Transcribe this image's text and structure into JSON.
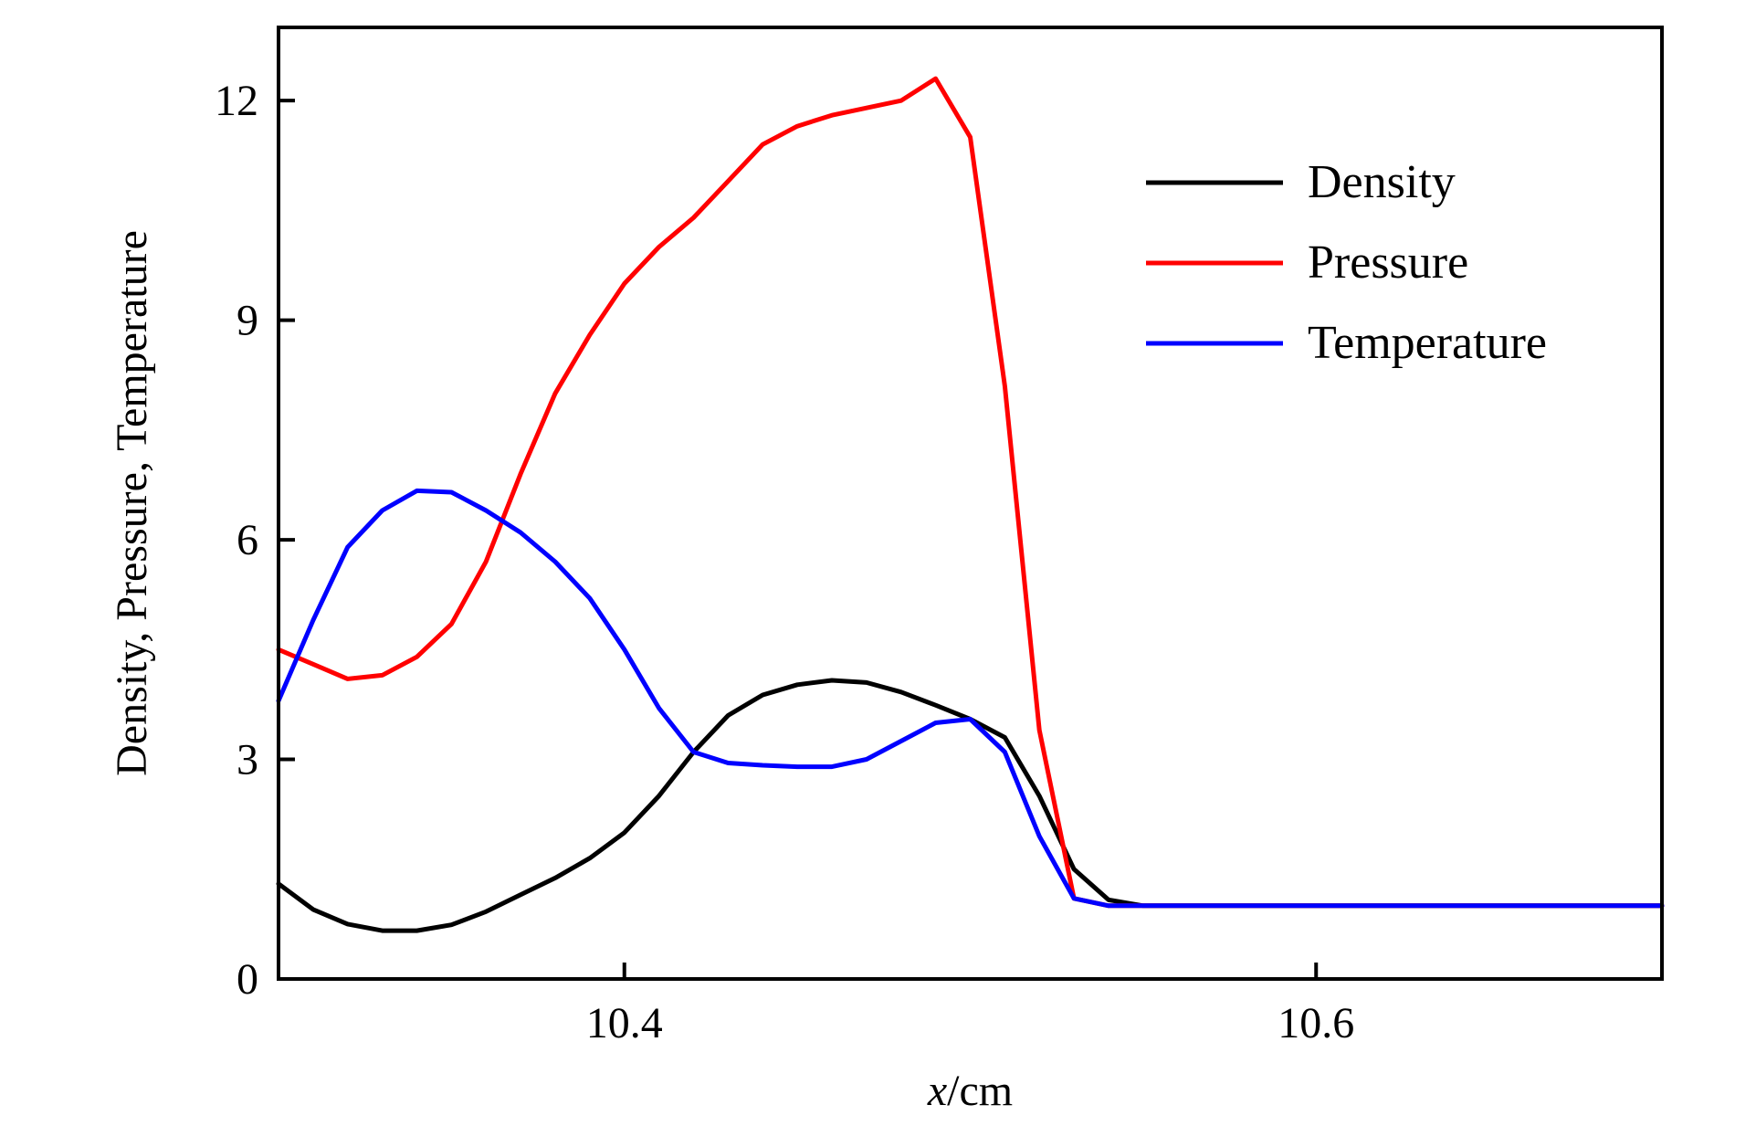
{
  "chart_data": {
    "type": "line",
    "title": "",
    "xlabel": {
      "italic": "x",
      "rest": "/cm"
    },
    "ylabel": "Density, Pressure, Temperature",
    "xlim": [
      10.3,
      10.7
    ],
    "ylim": [
      0,
      13
    ],
    "xticks": [
      10.4,
      10.6
    ],
    "xtick_labels": [
      "10.4",
      "10.6"
    ],
    "yticks": [
      0,
      3,
      6,
      9,
      12
    ],
    "ytick_labels": [
      "0",
      "3",
      "6",
      "9",
      "12"
    ],
    "grid": false,
    "legend_position": "top-right",
    "series": [
      {
        "name": "Density",
        "color": "#000000",
        "x": [
          10.3,
          10.31,
          10.32,
          10.33,
          10.34,
          10.35,
          10.36,
          10.37,
          10.38,
          10.39,
          10.4,
          10.41,
          10.42,
          10.43,
          10.44,
          10.45,
          10.46,
          10.47,
          10.48,
          10.49,
          10.5,
          10.51,
          10.52,
          10.53,
          10.54,
          10.55,
          10.56,
          10.57,
          10.58,
          10.59,
          10.6,
          10.62,
          10.64,
          10.66,
          10.68,
          10.7
        ],
        "values": [
          1.3,
          0.95,
          0.75,
          0.66,
          0.66,
          0.74,
          0.92,
          1.15,
          1.38,
          1.65,
          2.0,
          2.5,
          3.1,
          3.6,
          3.88,
          4.02,
          4.08,
          4.05,
          3.92,
          3.74,
          3.55,
          3.3,
          2.5,
          1.5,
          1.08,
          1.0,
          1.0,
          1.0,
          1.0,
          1.0,
          1.0,
          1.0,
          1.0,
          1.0,
          1.0,
          1.0
        ]
      },
      {
        "name": "Pressure",
        "color": "#ff0000",
        "x": [
          10.3,
          10.31,
          10.32,
          10.33,
          10.34,
          10.35,
          10.36,
          10.37,
          10.38,
          10.39,
          10.4,
          10.41,
          10.42,
          10.43,
          10.44,
          10.45,
          10.46,
          10.47,
          10.48,
          10.49,
          10.5,
          10.51,
          10.52,
          10.53,
          10.54,
          10.55,
          10.56,
          10.57,
          10.58,
          10.59,
          10.6,
          10.62,
          10.64,
          10.66,
          10.68,
          10.7
        ],
        "values": [
          4.5,
          4.3,
          4.1,
          4.15,
          4.4,
          4.85,
          5.7,
          6.9,
          8.0,
          8.8,
          9.5,
          10.0,
          10.4,
          10.9,
          11.4,
          11.65,
          11.8,
          11.9,
          12.0,
          12.3,
          11.5,
          8.1,
          3.4,
          1.1,
          1.0,
          1.0,
          1.0,
          1.0,
          1.0,
          1.0,
          1.0,
          1.0,
          1.0,
          1.0,
          1.0,
          1.0
        ]
      },
      {
        "name": "Temperature",
        "color": "#0000ff",
        "x": [
          10.3,
          10.31,
          10.32,
          10.33,
          10.34,
          10.35,
          10.36,
          10.37,
          10.38,
          10.39,
          10.4,
          10.41,
          10.42,
          10.43,
          10.44,
          10.45,
          10.46,
          10.47,
          10.48,
          10.49,
          10.5,
          10.51,
          10.52,
          10.53,
          10.54,
          10.55,
          10.56,
          10.57,
          10.58,
          10.59,
          10.6,
          10.62,
          10.64,
          10.66,
          10.68,
          10.7
        ],
        "values": [
          3.8,
          4.9,
          5.9,
          6.4,
          6.67,
          6.65,
          6.4,
          6.1,
          5.7,
          5.2,
          4.5,
          3.7,
          3.1,
          2.95,
          2.92,
          2.9,
          2.9,
          3.0,
          3.25,
          3.5,
          3.55,
          3.1,
          1.95,
          1.1,
          1.0,
          1.0,
          1.0,
          1.0,
          1.0,
          1.0,
          1.0,
          1.0,
          1.0,
          1.0,
          1.0,
          1.0
        ]
      }
    ]
  }
}
